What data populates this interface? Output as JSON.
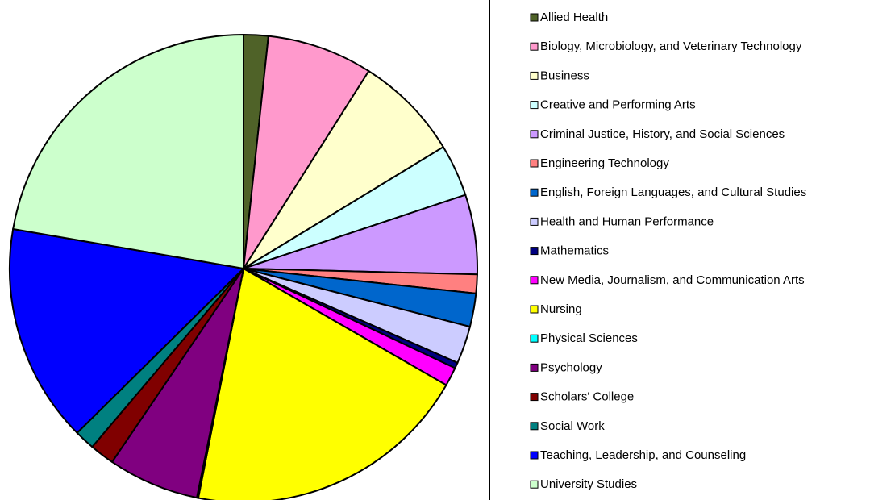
{
  "chart_data": {
    "type": "pie",
    "categories": [
      "Allied Health",
      "Biology, Microbiology, and Veterinary Technology",
      "Business",
      "Creative and Performing Arts",
      "Criminal Justice, History, and Social Sciences",
      "Engineering Technology",
      "English, Foreign Languages, and Cultural Studies",
      "Health and Human Performance",
      "Mathematics",
      "New Media, Journalism, and Communication Arts",
      "Nursing",
      "Physical Sciences",
      "Psychology",
      "Scholars' College",
      "Social Work",
      "Teaching, Leadership, and Counseling",
      "University Studies"
    ],
    "values": [
      1.7,
      7.3,
      7.3,
      3.6,
      5.5,
      1.3,
      2.3,
      2.6,
      0.4,
      1.3,
      19.8,
      0.1,
      6.3,
      1.7,
      1.4,
      15.1,
      22.3
    ],
    "colors": [
      "#4f6228",
      "#ff99cc",
      "#ffffcc",
      "#ccffff",
      "#cc99ff",
      "#ff8080",
      "#0066cc",
      "#ccccff",
      "#000080",
      "#ff00ff",
      "#ffff00",
      "#00ffff",
      "#800080",
      "#800000",
      "#008080",
      "#0000ff",
      "#ccffcc"
    ],
    "legend": "right"
  }
}
